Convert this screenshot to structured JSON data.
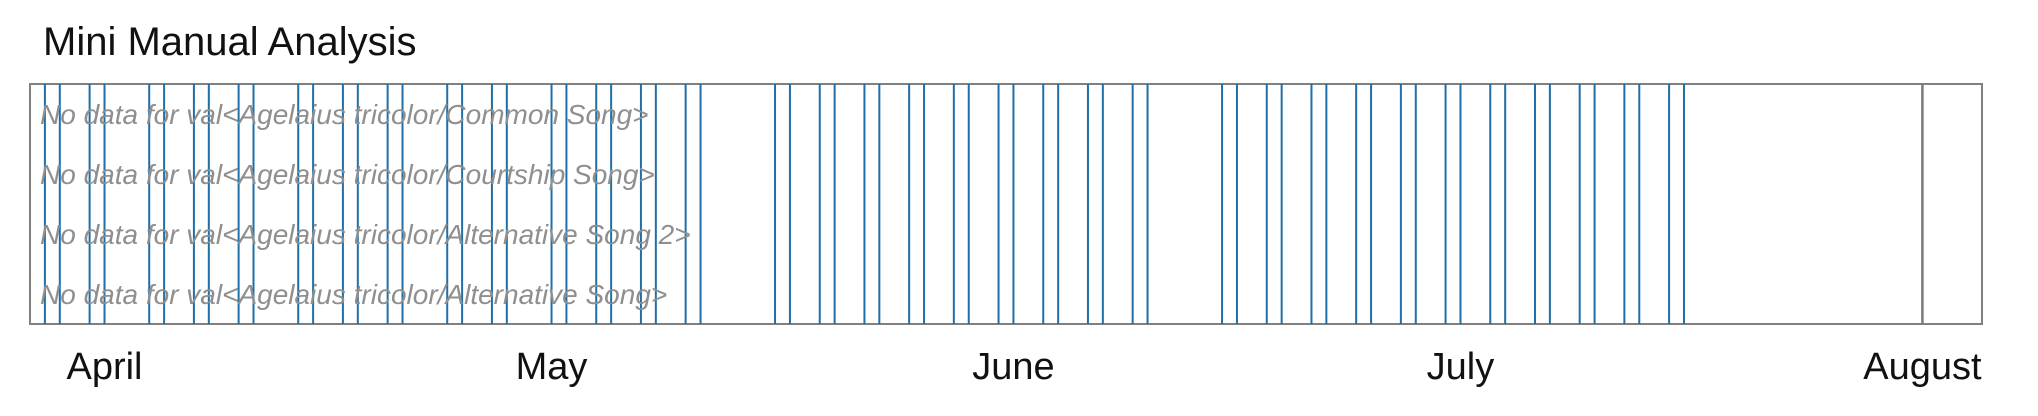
{
  "title": "Mini Manual Analysis",
  "chart_data": {
    "type": "timeline",
    "title": "Mini Manual Analysis",
    "x_range": [
      "2024-03-27",
      "2024-08-05"
    ],
    "month_ticks": [
      {
        "label": "April",
        "date": "2024-04-01"
      },
      {
        "label": "May",
        "date": "2024-05-01"
      },
      {
        "label": "June",
        "date": "2024-06-01"
      },
      {
        "label": "July",
        "date": "2024-07-01"
      },
      {
        "label": "August",
        "date": "2024-08-01"
      }
    ],
    "rows": [
      {
        "label": "No data for val<Agelaius tricolor/Common Song>"
      },
      {
        "label": "No data for val<Agelaius tricolor/Courtship Song>"
      },
      {
        "label": "No data for val<Agelaius tricolor/Alternative Song 2>"
      },
      {
        "label": "No data for val<Agelaius tricolor/Alternative Song>"
      }
    ],
    "recording_dates": [
      "2024-03-28",
      "2024-03-29",
      "2024-03-31",
      "2024-04-01",
      "2024-04-04",
      "2024-04-05",
      "2024-04-07",
      "2024-04-08",
      "2024-04-10",
      "2024-04-11",
      "2024-04-14",
      "2024-04-15",
      "2024-04-17",
      "2024-04-18",
      "2024-04-20",
      "2024-04-21",
      "2024-04-24",
      "2024-04-25",
      "2024-04-27",
      "2024-04-28",
      "2024-05-01",
      "2024-05-02",
      "2024-05-04",
      "2024-05-05",
      "2024-05-07",
      "2024-05-08",
      "2024-05-10",
      "2024-05-11",
      "2024-05-16",
      "2024-05-17",
      "2024-05-19",
      "2024-05-20",
      "2024-05-22",
      "2024-05-23",
      "2024-05-25",
      "2024-05-26",
      "2024-05-28",
      "2024-05-29",
      "2024-05-31",
      "2024-06-01",
      "2024-06-03",
      "2024-06-04",
      "2024-06-06",
      "2024-06-07",
      "2024-06-09",
      "2024-06-10",
      "2024-06-15",
      "2024-06-16",
      "2024-06-18",
      "2024-06-19",
      "2024-06-21",
      "2024-06-22",
      "2024-06-24",
      "2024-06-25",
      "2024-06-27",
      "2024-06-28",
      "2024-06-30",
      "2024-07-01",
      "2024-07-03",
      "2024-07-04",
      "2024-07-06",
      "2024-07-07",
      "2024-07-09",
      "2024-07-10",
      "2024-07-12",
      "2024-07-13",
      "2024-07-15",
      "2024-07-16"
    ],
    "marker_date": "2024-08-01",
    "grid": false,
    "legend": "none",
    "colors": {
      "recording_line": "#1f6fa8",
      "marker_line": "#7a7a7a",
      "frame": "#808080",
      "row_label": "#8f8f8f"
    }
  }
}
